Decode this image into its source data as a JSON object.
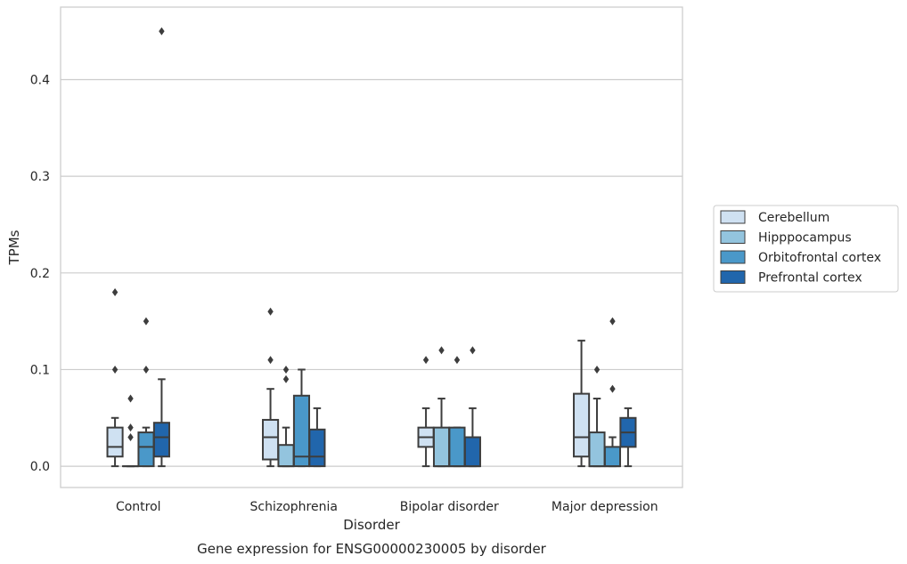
{
  "chart_data": {
    "type": "box",
    "caption": "Gene expression for ENSG00000230005 by disorder",
    "xlabel": "Disorder",
    "ylabel": "TPMs",
    "ylim": [
      -0.022,
      0.475
    ],
    "yticks": [
      "0.0",
      "0.1",
      "0.2",
      "0.3",
      "0.4"
    ],
    "ytick_values": [
      0.0,
      0.1,
      0.2,
      0.3,
      0.4
    ],
    "grid": "horizontal",
    "legend_position": "right",
    "categories": [
      "Control",
      "Schizophrenia",
      "Bipolar disorder",
      "Major depression"
    ],
    "series": [
      {
        "name": "Cerebellum",
        "color": "#cfe1f2",
        "boxes": [
          {
            "whislo": 0.0,
            "q1": 0.01,
            "med": 0.02,
            "q3": 0.04,
            "whishi": 0.05,
            "fliers": [
              0.1,
              0.18
            ]
          },
          {
            "whislo": 0.0,
            "q1": 0.007,
            "med": 0.03,
            "q3": 0.048,
            "whishi": 0.08,
            "fliers": [
              0.11,
              0.16
            ]
          },
          {
            "whislo": 0.0,
            "q1": 0.02,
            "med": 0.03,
            "q3": 0.04,
            "whishi": 0.06,
            "fliers": [
              0.11
            ]
          },
          {
            "whislo": 0.0,
            "q1": 0.01,
            "med": 0.03,
            "q3": 0.075,
            "whishi": 0.13,
            "fliers": []
          }
        ]
      },
      {
        "name": "Hipppocampus",
        "color": "#93c4de",
        "boxes": [
          {
            "whislo": 0.0,
            "q1": 0.0,
            "med": 0.0,
            "q3": 0.0,
            "whishi": 0.0,
            "fliers": [
              0.03,
              0.04,
              0.07
            ]
          },
          {
            "whislo": 0.0,
            "q1": 0.0,
            "med": 0.0,
            "q3": 0.022,
            "whishi": 0.04,
            "fliers": [
              0.09,
              0.1
            ]
          },
          {
            "whislo": 0.0,
            "q1": 0.0,
            "med": 0.0,
            "q3": 0.04,
            "whishi": 0.07,
            "fliers": [
              0.12
            ]
          },
          {
            "whislo": 0.0,
            "q1": 0.0,
            "med": 0.0,
            "q3": 0.035,
            "whishi": 0.07,
            "fliers": [
              0.1
            ]
          }
        ]
      },
      {
        "name": "Orbitofrontal cortex",
        "color": "#4a98c9",
        "boxes": [
          {
            "whislo": 0.0,
            "q1": 0.0,
            "med": 0.02,
            "q3": 0.035,
            "whishi": 0.04,
            "fliers": [
              0.1,
              0.15
            ]
          },
          {
            "whislo": 0.0,
            "q1": 0.0,
            "med": 0.01,
            "q3": 0.073,
            "whishi": 0.1,
            "fliers": []
          },
          {
            "whislo": 0.0,
            "q1": 0.0,
            "med": 0.0,
            "q3": 0.04,
            "whishi": 0.04,
            "fliers": [
              0.11
            ]
          },
          {
            "whislo": 0.0,
            "q1": 0.0,
            "med": 0.0,
            "q3": 0.02,
            "whishi": 0.03,
            "fliers": [
              0.08,
              0.15
            ]
          }
        ]
      },
      {
        "name": "Prefrontal cortex",
        "color": "#2166ac",
        "boxes": [
          {
            "whislo": 0.0,
            "q1": 0.01,
            "med": 0.03,
            "q3": 0.045,
            "whishi": 0.09,
            "fliers": [
              0.45
            ]
          },
          {
            "whislo": 0.0,
            "q1": 0.0,
            "med": 0.01,
            "q3": 0.038,
            "whishi": 0.06,
            "fliers": []
          },
          {
            "whislo": 0.0,
            "q1": 0.0,
            "med": 0.0,
            "q3": 0.03,
            "whishi": 0.06,
            "fliers": [
              0.12
            ]
          },
          {
            "whislo": 0.0,
            "q1": 0.02,
            "med": 0.035,
            "q3": 0.05,
            "whishi": 0.06,
            "fliers": []
          }
        ]
      }
    ]
  }
}
